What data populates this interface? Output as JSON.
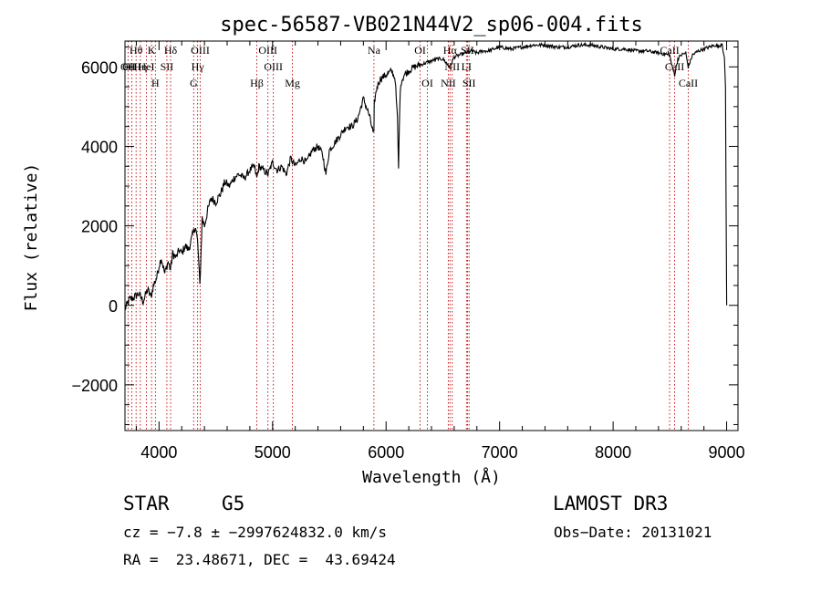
{
  "chart_data": {
    "type": "line",
    "title": "spec-56587-VB021N44V2_sp06-004.fits",
    "xlabel": "Wavelength (Å)",
    "ylabel": "Flux (relative)",
    "xlim": [
      3700,
      9100
    ],
    "ylim": [
      -3150,
      6650
    ],
    "xticks": [
      4000,
      5000,
      6000,
      7000,
      8000,
      9000
    ],
    "yticks": [
      -2000,
      0,
      2000,
      4000,
      6000
    ],
    "series": [
      {
        "name": "flux",
        "x": [
          3700,
          3740,
          3780,
          3820,
          3860,
          3900,
          3930,
          3950,
          3980,
          4000,
          4020,
          4050,
          4080,
          4101,
          4120,
          4150,
          4180,
          4200,
          4230,
          4260,
          4300,
          4320,
          4340,
          4360,
          4380,
          4400,
          4430,
          4460,
          4500,
          4540,
          4580,
          4620,
          4660,
          4700,
          4750,
          4800,
          4840,
          4861,
          4880,
          4920,
          4960,
          5000,
          5040,
          5080,
          5120,
          5160,
          5180,
          5200,
          5250,
          5300,
          5350,
          5400,
          5440,
          5470,
          5500,
          5550,
          5600,
          5650,
          5700,
          5750,
          5800,
          5850,
          5890,
          5893,
          5896,
          5920,
          5950,
          6000,
          6050,
          6080,
          6100,
          6110,
          6120,
          6130,
          6160,
          6200,
          6250,
          6300,
          6350,
          6400,
          6450,
          6500,
          6563,
          6600,
          6650,
          6700,
          6750,
          6800,
          6850,
          6900,
          6950,
          7000,
          7100,
          7200,
          7300,
          7400,
          7500,
          7600,
          7700,
          7800,
          7900,
          8000,
          8100,
          8200,
          8300,
          8400,
          8498,
          8520,
          8542,
          8570,
          8600,
          8640,
          8662,
          8700,
          8750,
          8800,
          8850,
          8900,
          8930,
          8960,
          8980,
          8990,
          9000
        ],
        "values": [
          -100,
          150,
          200,
          300,
          100,
          400,
          200,
          500,
          700,
          1000,
          1200,
          800,
          1100,
          900,
          1300,
          1200,
          1400,
          1300,
          1500,
          1400,
          1800,
          2000,
          1600,
          500,
          2200,
          2000,
          2400,
          2700,
          2600,
          2800,
          3100,
          3000,
          3200,
          3300,
          3200,
          3400,
          3500,
          3200,
          3500,
          3400,
          3300,
          3600,
          3400,
          3500,
          3300,
          3700,
          3600,
          3500,
          3700,
          3600,
          3900,
          4000,
          3800,
          3300,
          3900,
          4100,
          4300,
          4500,
          4500,
          4700,
          5200,
          4800,
          4300,
          4300,
          5100,
          5500,
          5700,
          5800,
          5900,
          5700,
          4700,
          3400,
          5000,
          5600,
          5800,
          5900,
          6000,
          6050,
          6100,
          6150,
          6200,
          6200,
          6000,
          6250,
          6300,
          6350,
          6400,
          6350,
          6400,
          6400,
          6450,
          6500,
          6450,
          6500,
          6550,
          6550,
          6500,
          6500,
          6550,
          6550,
          6500,
          6450,
          6450,
          6400,
          6400,
          6350,
          6300,
          6000,
          5800,
          6200,
          6300,
          6350,
          6000,
          6300,
          6400,
          6450,
          6500,
          6550,
          6500,
          6600,
          6200,
          5500,
          0
        ]
      }
    ],
    "line_markers": [
      {
        "label": "Hθ",
        "x": 3798
      },
      {
        "label": "K",
        "x": 3934
      },
      {
        "label": "Hδ",
        "x": 4102
      },
      {
        "label": "OIII",
        "x": 4363
      },
      {
        "label": "OIII",
        "x": 4959
      },
      {
        "label": "Na",
        "x": 5893
      },
      {
        "label": "OI",
        "x": 6300
      },
      {
        "label": "Hα",
        "x": 6563
      },
      {
        "label": "SII",
        "x": 6717
      },
      {
        "label": "CaII",
        "x": 8498
      },
      {
        "label": "OII",
        "x": 3727
      },
      {
        "label": "HeI",
        "x": 3889
      },
      {
        "label": "SII",
        "x": 4069
      },
      {
        "label": "Hγ",
        "x": 4340
      },
      {
        "label": "OIII",
        "x": 5007
      },
      {
        "label": "NII",
        "x": 6583
      },
      {
        "label": "LI",
        "x": 6708
      },
      {
        "label": "CaII",
        "x": 8542
      },
      {
        "label": "OIII",
        "x": 3760
      },
      {
        "label": "Hη",
        "x": 3835
      },
      {
        "label": "H",
        "x": 3968
      },
      {
        "label": "G",
        "x": 4305
      },
      {
        "label": "Hβ",
        "x": 4861
      },
      {
        "label": "Mg",
        "x": 5175
      },
      {
        "label": "OI",
        "x": 6364
      },
      {
        "label": "NII",
        "x": 6548
      },
      {
        "label": "SII",
        "x": 6731
      },
      {
        "label": "CaII",
        "x": 8662
      }
    ]
  },
  "info": {
    "object_class": "STAR",
    "subclass": "G5",
    "survey": "LAMOST DR3",
    "cz": "cz = −7.8 ± −2997624832.0 km/s",
    "obs_date": "Obs−Date: 20131021",
    "radec": "RA =  23.48671, DEC =  43.69424"
  }
}
